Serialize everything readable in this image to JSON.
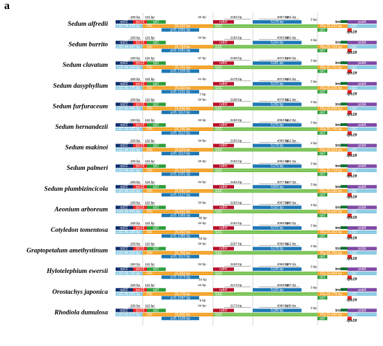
{
  "panel_label": "a",
  "colors": {
    "lsc": "#7fc6e0",
    "ir": "#f29b17",
    "ssc": "#6fbf4a",
    "rpl22": "#12306e",
    "rps19": "#e62321",
    "rpl2": "#2e9e3a",
    "ndhF": "#b7112a",
    "ycf1": "#1f78b4",
    "trnH": "#0b6e2e",
    "psbA": "#7e4aa5"
  },
  "genes": {
    "rpl22": "rpl22",
    "rps19": "rps19",
    "rpl2": "rpl2",
    "ndhF": "ndhF",
    "ycf1": "ycf1",
    "rps19b": "rps19",
    "rpl2b": "rpl2",
    "trnH": "trnH",
    "psbA": "psbA"
  },
  "regions": {
    "lsc": "LSC",
    "irb": "IRb",
    "ssc": "SSC",
    "ira": "IRa"
  },
  "species": [
    {
      "name": "Sedum alfredii",
      "a": "169 bp",
      "b": "116 bp",
      "c": "34 bp",
      "d": "2183 bp",
      "e": "4067 bp",
      "f": "1091 bp",
      "g": "3 bp",
      "lsc": "84,468 bp",
      "irb": "25,632 bp",
      "ycf1": "5178 bp",
      "ssc": "16,720 bp",
      "ira": "25,632 bp",
      "ycfb": "ycf1 1091 bp",
      "x": ""
    },
    {
      "name": "Sedum burrito",
      "a": "169 bp",
      "b": "116 bp",
      "c": "34 bp",
      "d": "2183 bp",
      "e": "4063 bp",
      "f": "1091 bp",
      "g": "3 bp",
      "lsc": "84,467 bp",
      "irb": "25,734 bp",
      "ycf1": "5154 bp",
      "ssc": "16,794 bp",
      "ira": "25,734 bp",
      "ycfb": "ycf1 1091 bp",
      "x": ""
    },
    {
      "name": "Sedum clavatum",
      "a": "169 bp",
      "b": "116 bp",
      "c": "37 bp",
      "d": "2186 bp",
      "e": "4072 bp",
      "f": "1109 bp",
      "g": "3 bp",
      "lsc": "84,244 bp",
      "irb": "25,751 bp",
      "ycf1": "5181 bp",
      "ssc": "16,751 bp",
      "ira": "25,751 bp",
      "ycfb": "ycf1 1109 bp",
      "x": ""
    },
    {
      "name": "Sedum dasyphyllum",
      "a": "169 bp",
      "b": "116 bp",
      "c": "41 bp",
      "d": "2178 bp",
      "e": "4074 bp",
      "f": "1101 bp",
      "g": "3 bp",
      "lsc": "82,776 bp",
      "irb": "25,630 bp",
      "ycf1": "5175 bp",
      "ssc": "16,657 bp",
      "ira": "25,630 bp",
      "ycfb": "ycf1 1101 bp",
      "x": "7 bp"
    },
    {
      "name": "Sedum furfuraceum",
      "a": "169 bp",
      "b": "116 bp",
      "c": "34 bp",
      "d": "2198 bp",
      "e": "4078 bp",
      "f": "1112 bp",
      "g": "3 bp",
      "lsc": "83,995 bp",
      "irb": "25,846 bp",
      "ycf1": "5190 bp",
      "ssc": "16,842 bp",
      "ira": "25,846 bp",
      "ycfb": "ycf1 1112 bp",
      "x": ""
    },
    {
      "name": "Sedum hernandezii",
      "a": "169 bp",
      "b": "116 bp",
      "c": "34 bp",
      "d": "2183 bp",
      "e": "4063 bp",
      "f": "1112 bp",
      "g": "3 bp",
      "lsc": "83,922 bp",
      "irb": "25,746 bp",
      "ycf1": "5175 bp",
      "ssc": "16,748 bp",
      "ira": "25,746 bp",
      "ycfb": "ycf1 1112 bp",
      "x": ""
    },
    {
      "name": "Sedum makinoi",
      "a": "169 bp",
      "b": "116 bp",
      "c": "34 bp",
      "d": "2183 bp",
      "e": "4066 bp",
      "f": "1112 bp",
      "g": "3 bp",
      "lsc": "84,123 bp",
      "irb": "25,624 bp",
      "ycf1": "5178 bp",
      "ssc": "16,683 bp",
      "ira": "25,624 bp",
      "ycfb": "ycf1 1112 bp",
      "x": ""
    },
    {
      "name": "Sedum palmeri",
      "a": "169 bp",
      "b": "116 bp",
      "c": "34 bp",
      "d": "2183 bp",
      "e": "4051 bp",
      "f": "1091 bp",
      "g": "3 bp",
      "lsc": "84,451 bp",
      "irb": "25,718 bp",
      "ycf1": "5175 bp",
      "ssc": "16,778 bp",
      "ira": "25,718 bp",
      "ycfb": "ycf1 1091 bp",
      "x": ""
    },
    {
      "name": "Sedum plumbizincicola",
      "a": "169 bp",
      "b": "116 bp",
      "c": "34 bp",
      "d": "2183 bp",
      "e": "4077 bp",
      "f": "1127 bp",
      "g": "3 bp",
      "lsc": "84,010 bp",
      "irb": "25,640 bp",
      "ycf1": "5204 bp",
      "ssc": "16,670 bp",
      "ira": "25,640 bp",
      "ycfb": "ycf1 1127 bp",
      "x": ""
    },
    {
      "name": "Aeonium arboreum",
      "a": "169 bp",
      "b": "116 bp",
      "c": "34 bp",
      "d": "2183 bp",
      "e": "4067 bp",
      "f": "1085 bp",
      "g": "3 bp",
      "lsc": "82,493 bp",
      "irb": "25,642 bp",
      "ycf1": "5152 bp",
      "ssc": "16,705 bp",
      "ira": "25,642 bp",
      "ycfb": "ycf1 1085 bp",
      "x": "46 bp"
    },
    {
      "name": "Cotyledon tomentosa",
      "a": "169 bp",
      "b": "116 bp",
      "c": "34 bp",
      "d": "2194 bp",
      "e": "4089 bp",
      "f": "1080 bp",
      "g": "3 bp",
      "lsc": "84,268 bp",
      "irb": "25,462 bp",
      "ycf1": "5172 bp",
      "ssc": "16,990 bp",
      "ira": "25,462 bp",
      "ycfb": "ycf1 1080 bp",
      "x": "53 bp"
    },
    {
      "name": "Graptopetalum amethystinum",
      "a": "169 bp",
      "b": "116 bp",
      "c": "34 bp",
      "d": "2207 bp",
      "e": "4099 bp",
      "f": "1112 bp",
      "g": "3 bp",
      "lsc": "84,009 bp",
      "irb": "25,766 bp",
      "ycf1": "5178 bp",
      "ssc": "16,764 bp",
      "ira": "25,766 bp",
      "ycfb": "ycf1 1112 bp",
      "x": ""
    },
    {
      "name": "Hylotelephium ewersii",
      "a": "169 bp",
      "b": "116 bp",
      "c": "34 bp",
      "d": "2183 bp",
      "e": "4066 bp",
      "f": "1079 bp",
      "g": "3 bp",
      "lsc": "83,733 bp",
      "irb": "25,804 bp",
      "ycf1": "5136 bp",
      "ssc": "16,876 bp",
      "ira": "25,804 bp",
      "ycfb": "ycf1 1079 bp",
      "x": "10 bp"
    },
    {
      "name": "Orostachys japonica",
      "a": "169 bp",
      "b": "116 bp",
      "c": "44 bp",
      "d": "2173 bp",
      "e": "4038 bp",
      "f": "1097 bp",
      "g": "3 bp",
      "lsc": "83,060 bp",
      "irb": "25,778 bp",
      "ycf1": "5126 bp",
      "ssc": "16,642 bp",
      "ira": "25,778 bp",
      "ycfb": "ycf1 1097 bp",
      "x": "9 bp"
    },
    {
      "name": "Rhodiola dumulosa",
      "a": "169 bp",
      "b": "116 bp",
      "c": "44 bp",
      "d": "2173 bp",
      "e": "4080 bp",
      "f": "1139 bp",
      "g": "3 bp",
      "lsc": "82,872 bp",
      "irb": "25,660 bp",
      "ycf1": "5198 bp",
      "ssc": "17,099 bp",
      "ira": "25,660 bp",
      "ycfb": "ycf1 1139 bp",
      "x": ""
    }
  ]
}
